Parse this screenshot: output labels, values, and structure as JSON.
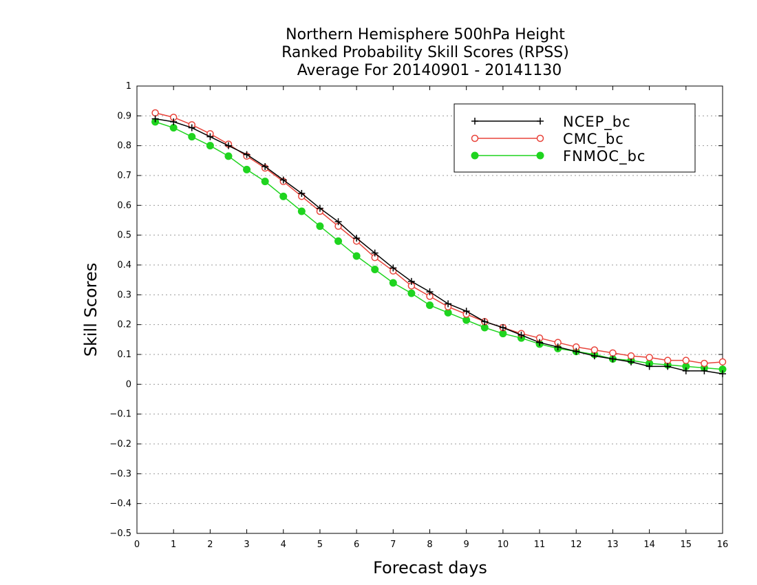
{
  "chart_data": {
    "type": "line",
    "title": [
      "Northern Hemisphere 500hPa Height",
      "Ranked Probability Skill Scores (RPSS)",
      "Average For 20140901 - 20141130"
    ],
    "xlabel": "Forecast days",
    "ylabel": "Skill Scores",
    "xlim": [
      0,
      16
    ],
    "ylim": [
      -0.5,
      1
    ],
    "x_ticks": [
      0,
      1,
      2,
      3,
      4,
      5,
      6,
      7,
      8,
      9,
      10,
      11,
      12,
      13,
      14,
      15,
      16
    ],
    "y_ticks": [
      -0.5,
      -0.4,
      -0.3,
      -0.2,
      -0.1,
      0,
      0.1,
      0.2,
      0.3,
      0.4,
      0.5,
      0.6,
      0.7,
      0.8,
      0.9,
      1
    ],
    "grid": "horizontal dotted",
    "legend_position": "top-right",
    "x": [
      0.5,
      1,
      1.5,
      2,
      2.5,
      3,
      3.5,
      4,
      4.5,
      5,
      5.5,
      6,
      6.5,
      7,
      7.5,
      8,
      8.5,
      9,
      9.5,
      10,
      10.5,
      11,
      11.5,
      12,
      12.5,
      13,
      13.5,
      14,
      14.5,
      15,
      15.5,
      16
    ],
    "series": [
      {
        "name": "NCEP_bc",
        "color": "#000000",
        "marker": "plus",
        "values": [
          0.89,
          0.88,
          0.86,
          0.83,
          0.8,
          0.77,
          0.73,
          0.685,
          0.64,
          0.59,
          0.545,
          0.49,
          0.44,
          0.39,
          0.345,
          0.31,
          0.27,
          0.245,
          0.21,
          0.19,
          0.165,
          0.14,
          0.125,
          0.11,
          0.095,
          0.085,
          0.075,
          0.06,
          0.06,
          0.045,
          0.045,
          0.035
        ]
      },
      {
        "name": "CMC_bc",
        "color": "#e8433a",
        "marker": "open-circle",
        "values": [
          0.91,
          0.895,
          0.87,
          0.84,
          0.805,
          0.765,
          0.725,
          0.68,
          0.63,
          0.58,
          0.53,
          0.48,
          0.425,
          0.38,
          0.33,
          0.295,
          0.26,
          0.235,
          0.21,
          0.19,
          0.17,
          0.155,
          0.14,
          0.125,
          0.115,
          0.105,
          0.095,
          0.09,
          0.08,
          0.08,
          0.07,
          0.075
        ]
      },
      {
        "name": "FNMOC_bc",
        "color": "#1fd41f",
        "marker": "filled-circle",
        "values": [
          0.88,
          0.86,
          0.83,
          0.8,
          0.765,
          0.72,
          0.68,
          0.63,
          0.58,
          0.53,
          0.48,
          0.43,
          0.385,
          0.34,
          0.305,
          0.265,
          0.24,
          0.215,
          0.19,
          0.17,
          0.155,
          0.135,
          0.12,
          0.11,
          0.1,
          0.085,
          0.08,
          0.07,
          0.065,
          0.06,
          0.055,
          0.05
        ]
      }
    ]
  }
}
